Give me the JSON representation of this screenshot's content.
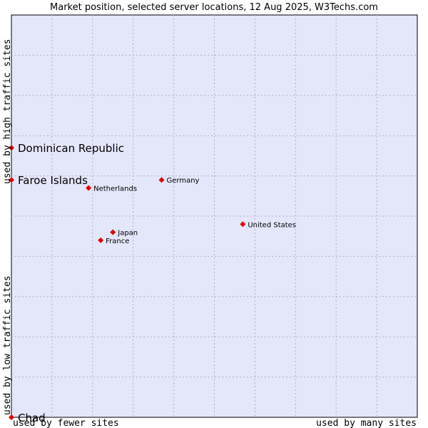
{
  "chart_data": {
    "type": "scatter",
    "title": "Market position, selected server locations, 12 Aug 2025, W3Techs.com",
    "xlabel_low": "used by fewer sites",
    "xlabel_high": "used by many sites",
    "ylabel_low": "used by low traffic sites",
    "ylabel_high": "used by high traffic sites",
    "xlim": [
      0,
      10
    ],
    "ylim": [
      0,
      10
    ],
    "grid": true,
    "colors": {
      "plot_background": "#e4e6fa",
      "grid": "#b0b0c8",
      "marker": "#e00000"
    },
    "points": [
      {
        "label": "United States",
        "x": 5.7,
        "y": 4.8
      },
      {
        "label": "Germany",
        "x": 3.7,
        "y": 5.9
      },
      {
        "label": "Netherlands",
        "x": 1.9,
        "y": 5.7
      },
      {
        "label": "Japan",
        "x": 2.5,
        "y": 4.6
      },
      {
        "label": "France",
        "x": 2.2,
        "y": 4.4
      },
      {
        "label": "Dominican Republic",
        "x": 0.0,
        "y": 6.7
      },
      {
        "label": "Faroe Islands",
        "x": 0.0,
        "y": 5.9
      },
      {
        "label": "Chad",
        "x": 0.0,
        "y": 0.0
      }
    ]
  }
}
